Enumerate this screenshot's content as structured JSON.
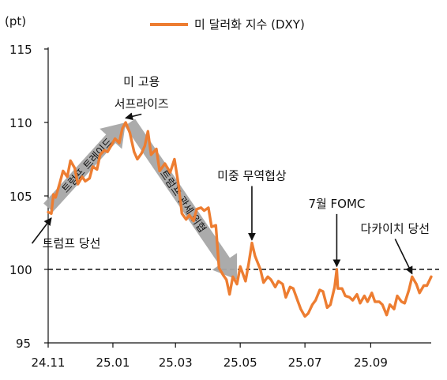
{
  "chart_data": {
    "type": "line",
    "y_unit": "(pt)",
    "ylim": [
      95,
      115
    ],
    "yticks": [
      "115",
      "110",
      "105",
      "100",
      "95"
    ],
    "xlim": [
      "2024-11-01",
      "2025-10-28"
    ],
    "xticks": [
      {
        "date": "2024-11-01",
        "label": "24.11"
      },
      {
        "date": "2025-01-01",
        "label": "25.01"
      },
      {
        "date": "2025-03-01",
        "label": "25.03"
      },
      {
        "date": "2025-05-01",
        "label": "25.05"
      },
      {
        "date": "2025-07-01",
        "label": "25.07"
      },
      {
        "date": "2025-09-01",
        "label": "25.09"
      }
    ],
    "legend": "top",
    "reference_line": 100,
    "series": [
      {
        "name": "미 달러화 지수 (DXY)",
        "color": "#ed7d31",
        "points": [
          [
            "2024-11-01",
            103.9
          ],
          [
            "2024-11-04",
            103.8
          ],
          [
            "2024-11-06",
            105.1
          ],
          [
            "2024-11-08",
            104.9
          ],
          [
            "2024-11-12",
            105.9
          ],
          [
            "2024-11-15",
            106.7
          ],
          [
            "2024-11-19",
            106.3
          ],
          [
            "2024-11-22",
            107.4
          ],
          [
            "2024-11-26",
            106.9
          ],
          [
            "2024-11-29",
            105.8
          ],
          [
            "2024-12-03",
            106.3
          ],
          [
            "2024-12-06",
            106.0
          ],
          [
            "2024-12-10",
            106.2
          ],
          [
            "2024-12-13",
            107.0
          ],
          [
            "2024-12-17",
            106.8
          ],
          [
            "2024-12-20",
            107.8
          ],
          [
            "2024-12-24",
            108.1
          ],
          [
            "2024-12-27",
            108.0
          ],
          [
            "2024-12-31",
            108.5
          ],
          [
            "2025-01-03",
            108.9
          ],
          [
            "2025-01-07",
            108.6
          ],
          [
            "2025-01-10",
            109.6
          ],
          [
            "2025-01-13",
            110.0
          ],
          [
            "2025-01-17",
            109.3
          ],
          [
            "2025-01-21",
            108.0
          ],
          [
            "2025-01-24",
            107.5
          ],
          [
            "2025-01-28",
            107.9
          ],
          [
            "2025-01-31",
            108.4
          ],
          [
            "2025-02-03",
            109.4
          ],
          [
            "2025-02-06",
            107.8
          ],
          [
            "2025-02-11",
            108.2
          ],
          [
            "2025-02-14",
            106.7
          ],
          [
            "2025-02-19",
            107.2
          ],
          [
            "2025-02-24",
            106.6
          ],
          [
            "2025-02-28",
            107.5
          ],
          [
            "2025-03-04",
            105.7
          ],
          [
            "2025-03-07",
            103.8
          ],
          [
            "2025-03-11",
            103.4
          ],
          [
            "2025-03-14",
            103.7
          ],
          [
            "2025-03-18",
            103.3
          ],
          [
            "2025-03-21",
            104.1
          ],
          [
            "2025-03-25",
            104.2
          ],
          [
            "2025-03-28",
            104.0
          ],
          [
            "2025-04-01",
            104.2
          ],
          [
            "2025-04-04",
            102.9
          ],
          [
            "2025-04-08",
            103.0
          ],
          [
            "2025-04-11",
            100.1
          ],
          [
            "2025-04-15",
            99.6
          ],
          [
            "2025-04-18",
            99.3
          ],
          [
            "2025-04-21",
            98.3
          ],
          [
            "2025-04-24",
            99.5
          ],
          [
            "2025-04-28",
            99.0
          ],
          [
            "2025-05-01",
            100.2
          ],
          [
            "2025-05-06",
            99.2
          ],
          [
            "2025-05-09",
            100.4
          ],
          [
            "2025-05-12",
            101.8
          ],
          [
            "2025-05-15",
            100.9
          ],
          [
            "2025-05-20",
            100.0
          ],
          [
            "2025-05-23",
            99.1
          ],
          [
            "2025-05-27",
            99.5
          ],
          [
            "2025-05-30",
            99.3
          ],
          [
            "2025-06-03",
            98.8
          ],
          [
            "2025-06-06",
            99.2
          ],
          [
            "2025-06-10",
            99.0
          ],
          [
            "2025-06-13",
            98.1
          ],
          [
            "2025-06-17",
            98.8
          ],
          [
            "2025-06-20",
            98.7
          ],
          [
            "2025-06-24",
            97.9
          ],
          [
            "2025-06-27",
            97.3
          ],
          [
            "2025-07-01",
            96.8
          ],
          [
            "2025-07-04",
            97.0
          ],
          [
            "2025-07-08",
            97.6
          ],
          [
            "2025-07-11",
            97.9
          ],
          [
            "2025-07-15",
            98.6
          ],
          [
            "2025-07-18",
            98.5
          ],
          [
            "2025-07-22",
            97.4
          ],
          [
            "2025-07-25",
            97.6
          ],
          [
            "2025-07-29",
            98.8
          ],
          [
            "2025-07-31",
            100.0
          ],
          [
            "2025-08-01",
            98.7
          ],
          [
            "2025-08-05",
            98.7
          ],
          [
            "2025-08-08",
            98.2
          ],
          [
            "2025-08-12",
            98.1
          ],
          [
            "2025-08-15",
            97.9
          ],
          [
            "2025-08-19",
            98.3
          ],
          [
            "2025-08-22",
            97.7
          ],
          [
            "2025-08-26",
            98.2
          ],
          [
            "2025-08-29",
            97.8
          ],
          [
            "2025-09-02",
            98.4
          ],
          [
            "2025-09-05",
            97.8
          ],
          [
            "2025-09-09",
            97.8
          ],
          [
            "2025-09-12",
            97.6
          ],
          [
            "2025-09-16",
            96.9
          ],
          [
            "2025-09-19",
            97.6
          ],
          [
            "2025-09-23",
            97.3
          ],
          [
            "2025-09-26",
            98.2
          ],
          [
            "2025-09-30",
            97.8
          ],
          [
            "2025-10-03",
            97.7
          ],
          [
            "2025-10-07",
            98.6
          ],
          [
            "2025-10-10",
            99.5
          ],
          [
            "2025-10-14",
            99.0
          ],
          [
            "2025-10-17",
            98.4
          ],
          [
            "2025-10-21",
            98.9
          ],
          [
            "2025-10-24",
            98.9
          ],
          [
            "2025-10-28",
            99.5
          ]
        ]
      }
    ],
    "trend_arrows": [
      {
        "label": "트럼프 트레이드",
        "from": [
          "2024-11-01",
          104.2
        ],
        "to": [
          "2025-01-13",
          110.0
        ],
        "color": "#a6a6a6"
      },
      {
        "label": "트럼프 관세 위협",
        "from": [
          "2025-01-17",
          110.0
        ],
        "to": [
          "2025-04-28",
          99.3
        ],
        "color": "#a6a6a6"
      }
    ],
    "annotations": [
      {
        "lines": [
          "미 고용",
          "서프라이즈"
        ],
        "label_at": [
          "2025-01-28",
          112.5
        ],
        "arrow_to": [
          "2025-01-13",
          110.3
        ]
      },
      {
        "lines": [
          "트럼프 당선"
        ],
        "label_at": [
          "2024-11-23",
          101.5
        ],
        "arrow_to": [
          "2024-11-04",
          103.5
        ]
      },
      {
        "lines": [
          "미중 무역협상"
        ],
        "label_at": [
          "2025-05-12",
          106.1
        ],
        "arrow_to": [
          "2025-05-12",
          102.0
        ]
      },
      {
        "lines": [
          "7월 FOMC"
        ],
        "label_at": [
          "2025-07-31",
          104.2
        ],
        "arrow_to": [
          "2025-07-31",
          100.2
        ]
      },
      {
        "lines": [
          "다카이치 당선"
        ],
        "label_at": [
          "2025-09-24",
          102.5
        ],
        "arrow_to": [
          "2025-10-10",
          99.7
        ]
      }
    ]
  }
}
